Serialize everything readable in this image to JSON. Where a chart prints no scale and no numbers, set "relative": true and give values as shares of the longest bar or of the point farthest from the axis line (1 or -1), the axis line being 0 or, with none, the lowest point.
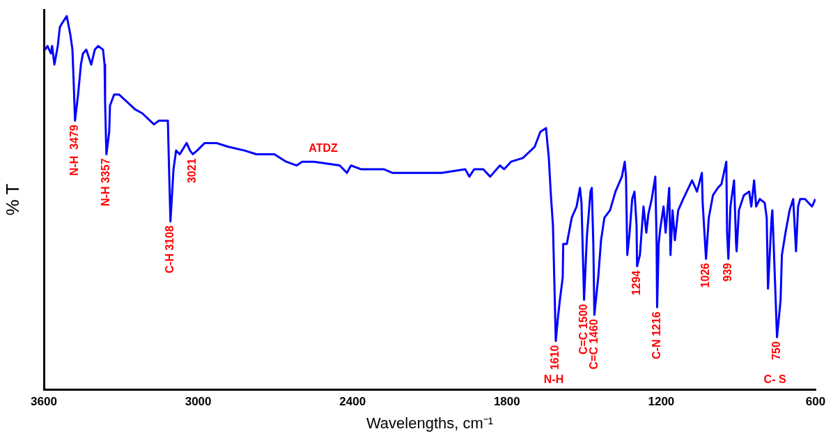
{
  "chart_data": {
    "type": "line",
    "relative": true,
    "xlabel": "Wavelengths, cm⁻¹",
    "ylabel": "% T",
    "xlim": [
      3600,
      600
    ],
    "xticks": [
      3600,
      3000,
      2400,
      1800,
      1200,
      600
    ],
    "grid": false,
    "legend": false,
    "x": [
      3595,
      3586,
      3573,
      3568,
      3559,
      3546,
      3538,
      3530,
      3511,
      3497,
      3489,
      3484,
      3479,
      3467,
      3456,
      3448,
      3435,
      3416,
      3402,
      3389,
      3370,
      3364,
      3362,
      3357,
      3346,
      3343,
      3327,
      3308,
      3245,
      3218,
      3172,
      3153,
      3118,
      3113,
      3108,
      3096,
      3086,
      3072,
      3045,
      3032,
      3021,
      3004,
      2975,
      2929,
      2883,
      2820,
      2774,
      2704,
      2658,
      2617,
      2596,
      2550,
      2450,
      2422,
      2406,
      2368,
      2279,
      2244,
      2144,
      2125,
      2054,
      1962,
      1946,
      1927,
      1892,
      1865,
      1827,
      1811,
      1784,
      1738,
      1692,
      1670,
      1648,
      1637,
      1629,
      1621,
      1616,
      1610,
      1602,
      1594,
      1583,
      1581,
      1567,
      1548,
      1529,
      1516,
      1510,
      1500,
      1489,
      1475,
      1470,
      1464,
      1460,
      1445,
      1434,
      1421,
      1399,
      1378,
      1353,
      1342,
      1337,
      1332,
      1323,
      1313,
      1304,
      1296,
      1294,
      1283,
      1269,
      1258,
      1250,
      1237,
      1223,
      1218,
      1216,
      1210,
      1204,
      1191,
      1183,
      1169,
      1164,
      1156,
      1147,
      1134,
      1115,
      1080,
      1061,
      1042,
      1039,
      1026,
      1015,
      999,
      980,
      966,
      947,
      944,
      939,
      931,
      917,
      909,
      907,
      898,
      879,
      858,
      850,
      839,
      831,
      817,
      798,
      790,
      785,
      771,
      768,
      763,
      750,
      736,
      731,
      717,
      701,
      687,
      676,
      668,
      660,
      641,
      614,
      601
    ],
    "series": [
      {
        "color": "#0000ff",
        "values": [
          0.91,
          0.92,
          0.9,
          0.92,
          0.87,
          0.92,
          0.97,
          0.98,
          1.0,
          0.95,
          0.91,
          0.82,
          0.72,
          0.79,
          0.87,
          0.9,
          0.91,
          0.87,
          0.91,
          0.92,
          0.91,
          0.87,
          0.77,
          0.63,
          0.69,
          0.76,
          0.79,
          0.79,
          0.75,
          0.74,
          0.71,
          0.72,
          0.72,
          0.58,
          0.45,
          0.59,
          0.64,
          0.63,
          0.66,
          0.64,
          0.63,
          0.64,
          0.66,
          0.66,
          0.65,
          0.64,
          0.63,
          0.63,
          0.61,
          0.6,
          0.61,
          0.61,
          0.6,
          0.58,
          0.6,
          0.59,
          0.59,
          0.58,
          0.58,
          0.58,
          0.58,
          0.59,
          0.57,
          0.59,
          0.59,
          0.57,
          0.6,
          0.59,
          0.61,
          0.62,
          0.65,
          0.69,
          0.7,
          0.62,
          0.52,
          0.44,
          0.3,
          0.13,
          0.19,
          0.24,
          0.3,
          0.39,
          0.39,
          0.46,
          0.49,
          0.54,
          0.5,
          0.24,
          0.41,
          0.53,
          0.54,
          0.39,
          0.2,
          0.3,
          0.4,
          0.46,
          0.48,
          0.53,
          0.57,
          0.61,
          0.57,
          0.36,
          0.42,
          0.51,
          0.53,
          0.44,
          0.33,
          0.36,
          0.49,
          0.42,
          0.47,
          0.51,
          0.57,
          0.39,
          0.22,
          0.39,
          0.43,
          0.49,
          0.42,
          0.54,
          0.36,
          0.48,
          0.4,
          0.48,
          0.51,
          0.56,
          0.53,
          0.58,
          0.5,
          0.35,
          0.46,
          0.52,
          0.54,
          0.55,
          0.61,
          0.42,
          0.35,
          0.49,
          0.56,
          0.39,
          0.37,
          0.48,
          0.52,
          0.53,
          0.49,
          0.56,
          0.49,
          0.51,
          0.5,
          0.46,
          0.27,
          0.46,
          0.48,
          0.39,
          0.14,
          0.24,
          0.36,
          0.42,
          0.48,
          0.51,
          0.37,
          0.49,
          0.51,
          0.51,
          0.49,
          0.51
        ]
      }
    ],
    "annotations": [
      "ATDZ",
      {
        "text": "N-H  3479",
        "x": 3479,
        "y": 0.72
      },
      {
        "text": "N-H 3357",
        "x": 3357,
        "y": 0.63
      },
      {
        "text": "C-H 3108",
        "x": 3108,
        "y": 0.45
      },
      {
        "text": "3021",
        "x": 3021,
        "y": 0.63
      },
      {
        "text": "1610",
        "x": 1610,
        "y": 0.13
      },
      "N-H",
      {
        "text": "C=C 1500",
        "x": 1500,
        "y": 0.24
      },
      {
        "text": "C=C 1460",
        "x": 1460,
        "y": 0.2
      },
      {
        "text": "1294",
        "x": 1294,
        "y": 0.33
      },
      {
        "text": "C-N 1216",
        "x": 1216,
        "y": 0.22
      },
      {
        "text": "1026",
        "x": 1026,
        "y": 0.35
      },
      {
        "text": "939",
        "x": 939,
        "y": 0.35
      },
      {
        "text": "750",
        "x": 750,
        "y": 0.14
      },
      "C- S"
    ]
  }
}
